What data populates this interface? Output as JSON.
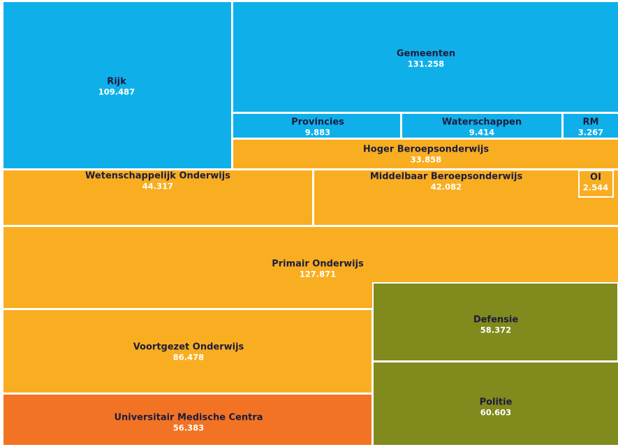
{
  "chart_data": {
    "type": "treemap",
    "categories": [
      "Rijk",
      "Gemeenten",
      "Provincies",
      "Waterschappen",
      "RM",
      "Hoger Beroepsonderwijs",
      "Wetenschappelijk Onderwijs",
      "Middelbaar Beroepsonderwijs",
      "OI",
      "Primair Onderwijs",
      "Voortgezet Onderwijs",
      "Defensie",
      "Politie",
      "Universitair Medische  Centra"
    ],
    "values": [
      109487,
      131258,
      9883,
      9414,
      3267,
      33858,
      44317,
      42082,
      2544,
      127871,
      86478,
      58372,
      60603,
      56383
    ],
    "value_labels": [
      "109.487",
      "131.258",
      "9.883",
      "9.414",
      "3.267",
      "33.858",
      "44.317",
      "42.082",
      "2.544",
      "127.871",
      "86.478",
      "58.372",
      "60.603",
      "56.383"
    ],
    "colors": [
      "#0fb0ea",
      "#0fb0ea",
      "#0fb0ea",
      "#0fb0ea",
      "#0fb0ea",
      "#f9ae21",
      "#f9ae21",
      "#f9ae21",
      "#f9ae21",
      "#f9ae21",
      "#f9ae21",
      "#808a1d",
      "#808a1d",
      "#f37325"
    ]
  }
}
